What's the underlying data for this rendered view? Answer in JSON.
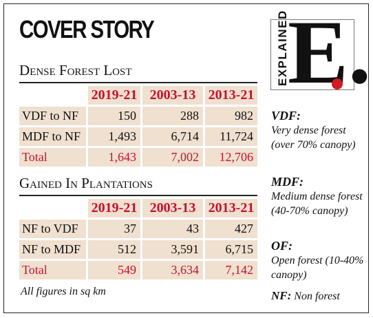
{
  "header": {
    "title": "COVER STORY"
  },
  "logo": {
    "word": "EXPLAINED",
    "letter": "E."
  },
  "dense_forest_lost": {
    "title": "Dense Forest Lost",
    "columns": [
      "2019-21",
      "2003-13",
      "2013-21"
    ],
    "rows": [
      {
        "label": "VDF to NF",
        "values": [
          "150",
          "288",
          "982"
        ]
      },
      {
        "label": "MDF to NF",
        "values": [
          "1,493",
          "6,714",
          "11,724"
        ]
      },
      {
        "label": "Total",
        "values": [
          "1,643",
          "7,002",
          "12,706"
        ]
      }
    ]
  },
  "gained_in_plantations": {
    "title": "Gained In Plantations",
    "columns": [
      "2019-21",
      "2003-13",
      "2013-21"
    ],
    "rows": [
      {
        "label": "NF to VDF",
        "values": [
          "37",
          "43",
          "427"
        ]
      },
      {
        "label": "NF to MDF",
        "values": [
          "512",
          "3,591",
          "6,715"
        ]
      },
      {
        "label": "Total",
        "values": [
          "549",
          "3,634",
          "7,142"
        ]
      }
    ]
  },
  "footnote": "All figures in sq km",
  "legend": {
    "vdf_term": "VDF:",
    "vdf_desc": "Very dense forest (over 70% canopy)",
    "mdf_term": "MDF:",
    "mdf_desc": "Medium dense forest (40-70% canopy)",
    "of_term": "OF:",
    "of_desc": "Open forest (10-40% canopy)",
    "nf_term": "NF:",
    "nf_desc": "Non forest"
  },
  "colors": {
    "accent_red": "#c8102e",
    "cell_tan": "#efe0cf",
    "logo_dot": "#d11a22"
  }
}
